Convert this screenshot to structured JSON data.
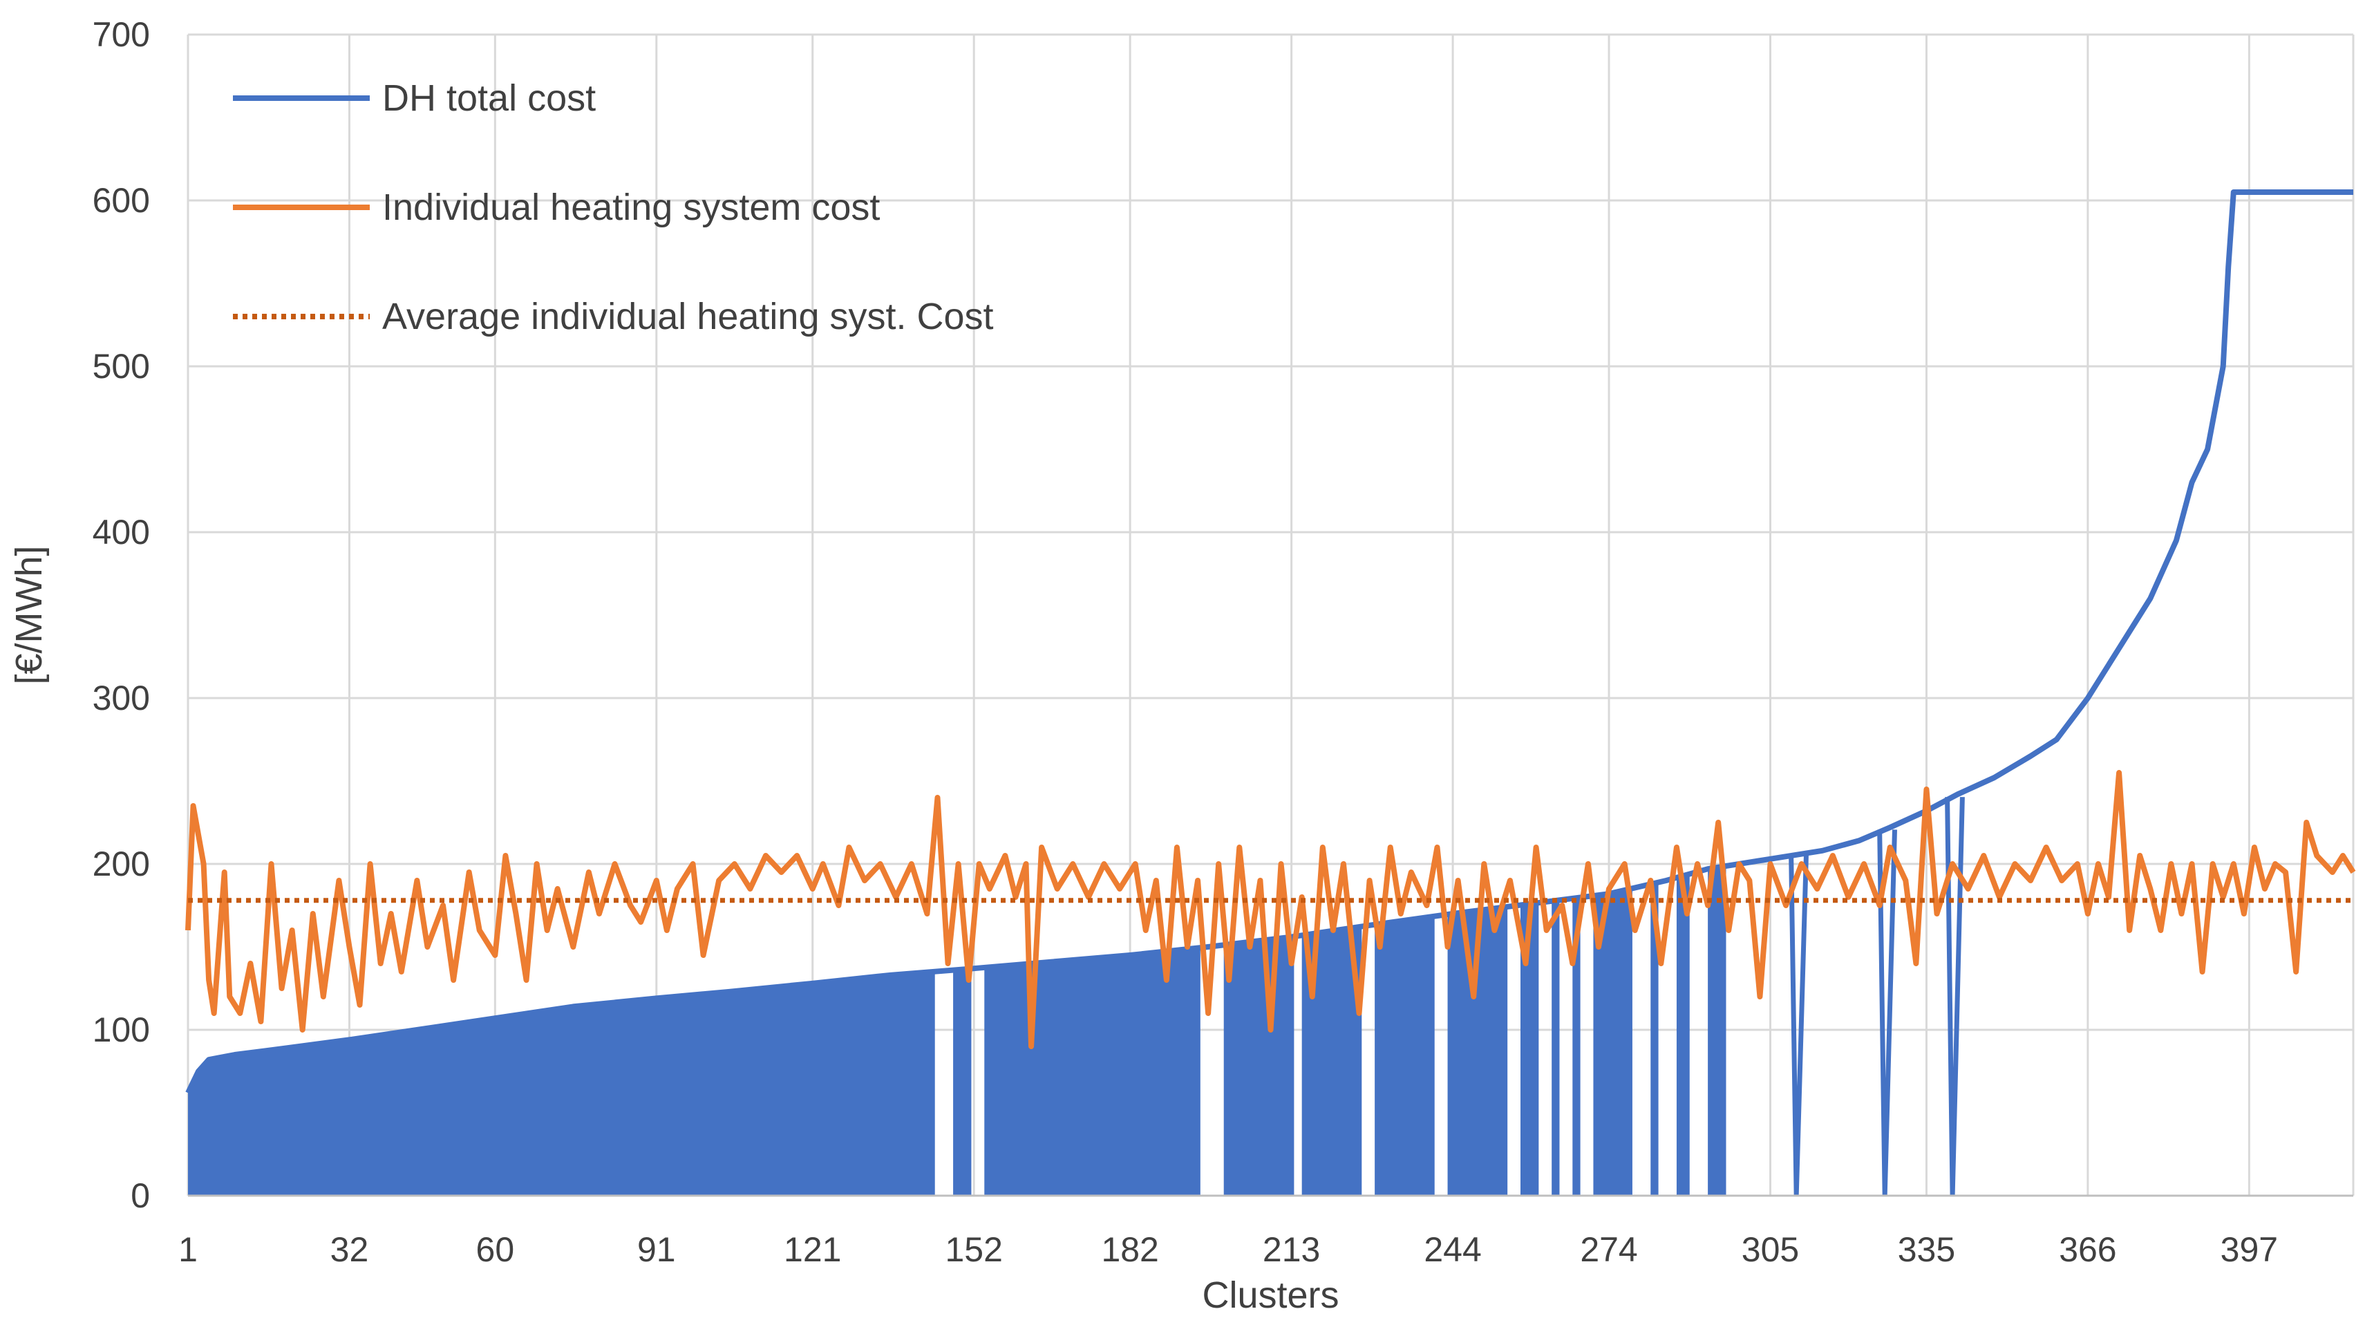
{
  "chart_data": {
    "type": "line",
    "title": "",
    "xlabel": "Clusters",
    "ylabel": "[€/MWh]",
    "ylim": [
      0,
      700
    ],
    "xlim": [
      1,
      417
    ],
    "yticks": [
      0,
      100,
      200,
      300,
      400,
      500,
      600,
      700
    ],
    "xticks": [
      1,
      32,
      60,
      91,
      121,
      152,
      182,
      213,
      244,
      274,
      305,
      335,
      366,
      397
    ],
    "grid": true,
    "legend_position": "top-left",
    "series": [
      {
        "name": "DH total cost",
        "style": "line-with-area",
        "color": "#4472C4",
        "points": [
          [
            1,
            62
          ],
          [
            3,
            75
          ],
          [
            5,
            82
          ],
          [
            10,
            85
          ],
          [
            20,
            89
          ],
          [
            32,
            94
          ],
          [
            45,
            100
          ],
          [
            60,
            107
          ],
          [
            75,
            114
          ],
          [
            91,
            119
          ],
          [
            105,
            123
          ],
          [
            121,
            128
          ],
          [
            136,
            133
          ],
          [
            152,
            137
          ],
          [
            167,
            141
          ],
          [
            182,
            145
          ],
          [
            197,
            150
          ],
          [
            213,
            156
          ],
          [
            228,
            163
          ],
          [
            244,
            170
          ],
          [
            259,
            176
          ],
          [
            274,
            182
          ],
          [
            285,
            190
          ],
          [
            293,
            197
          ],
          [
            305,
            203
          ],
          [
            315,
            208
          ],
          [
            322,
            214
          ],
          [
            328,
            222
          ],
          [
            335,
            232
          ],
          [
            341,
            242
          ],
          [
            348,
            252
          ],
          [
            355,
            265
          ],
          [
            360,
            275
          ],
          [
            366,
            300
          ],
          [
            372,
            330
          ],
          [
            378,
            360
          ],
          [
            383,
            395
          ],
          [
            386,
            430
          ],
          [
            389,
            450
          ],
          [
            392,
            500
          ],
          [
            393,
            560
          ],
          [
            394,
            605
          ],
          [
            417,
            605
          ]
        ],
        "area_until": 300,
        "dropouts": [
          [
            145,
            147
          ],
          [
            152,
            153
          ],
          [
            196,
            197
          ],
          [
            198,
            199
          ],
          [
            214,
            214
          ],
          [
            227,
            228
          ],
          [
            241,
            242
          ],
          [
            255,
            256
          ],
          [
            261,
            262
          ],
          [
            265,
            266
          ],
          [
            269,
            270
          ],
          [
            279,
            281
          ],
          [
            284,
            286
          ],
          [
            290,
            292
          ],
          [
            297,
            300
          ],
          [
            309,
            311
          ],
          [
            326,
            328
          ],
          [
            339,
            341
          ]
        ]
      },
      {
        "name": "Individual heating system cost",
        "style": "line",
        "color": "#ED7D31",
        "points": [
          [
            1,
            160
          ],
          [
            2,
            235
          ],
          [
            4,
            200
          ],
          [
            5,
            130
          ],
          [
            6,
            110
          ],
          [
            8,
            195
          ],
          [
            9,
            120
          ],
          [
            11,
            110
          ],
          [
            13,
            140
          ],
          [
            15,
            105
          ],
          [
            17,
            200
          ],
          [
            19,
            125
          ],
          [
            21,
            160
          ],
          [
            23,
            100
          ],
          [
            25,
            170
          ],
          [
            27,
            120
          ],
          [
            30,
            190
          ],
          [
            32,
            150
          ],
          [
            34,
            115
          ],
          [
            36,
            200
          ],
          [
            38,
            140
          ],
          [
            40,
            170
          ],
          [
            42,
            135
          ],
          [
            45,
            190
          ],
          [
            47,
            150
          ],
          [
            50,
            175
          ],
          [
            52,
            130
          ],
          [
            55,
            195
          ],
          [
            57,
            160
          ],
          [
            60,
            145
          ],
          [
            62,
            205
          ],
          [
            64,
            170
          ],
          [
            66,
            130
          ],
          [
            68,
            200
          ],
          [
            70,
            160
          ],
          [
            72,
            185
          ],
          [
            75,
            150
          ],
          [
            78,
            195
          ],
          [
            80,
            170
          ],
          [
            83,
            200
          ],
          [
            86,
            175
          ],
          [
            88,
            165
          ],
          [
            91,
            190
          ],
          [
            93,
            160
          ],
          [
            95,
            185
          ],
          [
            98,
            200
          ],
          [
            100,
            145
          ],
          [
            103,
            190
          ],
          [
            106,
            200
          ],
          [
            109,
            185
          ],
          [
            112,
            205
          ],
          [
            115,
            195
          ],
          [
            118,
            205
          ],
          [
            121,
            185
          ],
          [
            123,
            200
          ],
          [
            126,
            175
          ],
          [
            128,
            210
          ],
          [
            131,
            190
          ],
          [
            134,
            200
          ],
          [
            137,
            180
          ],
          [
            140,
            200
          ],
          [
            143,
            170
          ],
          [
            145,
            240
          ],
          [
            147,
            140
          ],
          [
            149,
            200
          ],
          [
            151,
            130
          ],
          [
            153,
            200
          ],
          [
            155,
            185
          ],
          [
            158,
            205
          ],
          [
            160,
            180
          ],
          [
            162,
            200
          ],
          [
            163,
            90
          ],
          [
            165,
            210
          ],
          [
            168,
            185
          ],
          [
            171,
            200
          ],
          [
            174,
            180
          ],
          [
            177,
            200
          ],
          [
            180,
            185
          ],
          [
            183,
            200
          ],
          [
            185,
            160
          ],
          [
            187,
            190
          ],
          [
            189,
            130
          ],
          [
            191,
            210
          ],
          [
            193,
            150
          ],
          [
            195,
            190
          ],
          [
            197,
            110
          ],
          [
            199,
            200
          ],
          [
            201,
            130
          ],
          [
            203,
            210
          ],
          [
            205,
            150
          ],
          [
            207,
            190
          ],
          [
            209,
            100
          ],
          [
            211,
            200
          ],
          [
            213,
            140
          ],
          [
            215,
            180
          ],
          [
            217,
            120
          ],
          [
            219,
            210
          ],
          [
            221,
            160
          ],
          [
            223,
            200
          ],
          [
            226,
            110
          ],
          [
            228,
            190
          ],
          [
            230,
            150
          ],
          [
            232,
            210
          ],
          [
            234,
            170
          ],
          [
            236,
            195
          ],
          [
            239,
            175
          ],
          [
            241,
            210
          ],
          [
            243,
            150
          ],
          [
            245,
            190
          ],
          [
            248,
            120
          ],
          [
            250,
            200
          ],
          [
            252,
            160
          ],
          [
            255,
            190
          ],
          [
            258,
            140
          ],
          [
            260,
            210
          ],
          [
            262,
            160
          ],
          [
            265,
            175
          ],
          [
            267,
            140
          ],
          [
            270,
            200
          ],
          [
            272,
            150
          ],
          [
            274,
            185
          ],
          [
            277,
            200
          ],
          [
            279,
            160
          ],
          [
            282,
            190
          ],
          [
            284,
            140
          ],
          [
            287,
            210
          ],
          [
            289,
            170
          ],
          [
            291,
            200
          ],
          [
            293,
            175
          ],
          [
            295,
            225
          ],
          [
            297,
            160
          ],
          [
            299,
            200
          ],
          [
            301,
            190
          ],
          [
            303,
            120
          ],
          [
            305,
            200
          ],
          [
            308,
            175
          ],
          [
            311,
            200
          ],
          [
            314,
            185
          ],
          [
            317,
            205
          ],
          [
            320,
            180
          ],
          [
            323,
            200
          ],
          [
            326,
            175
          ],
          [
            328,
            210
          ],
          [
            331,
            190
          ],
          [
            333,
            140
          ],
          [
            335,
            245
          ],
          [
            337,
            170
          ],
          [
            340,
            200
          ],
          [
            343,
            185
          ],
          [
            346,
            205
          ],
          [
            349,
            180
          ],
          [
            352,
            200
          ],
          [
            355,
            190
          ],
          [
            358,
            210
          ],
          [
            361,
            190
          ],
          [
            364,
            200
          ],
          [
            366,
            170
          ],
          [
            368,
            200
          ],
          [
            370,
            180
          ],
          [
            372,
            255
          ],
          [
            374,
            160
          ],
          [
            376,
            205
          ],
          [
            378,
            185
          ],
          [
            380,
            160
          ],
          [
            382,
            200
          ],
          [
            384,
            170
          ],
          [
            386,
            200
          ],
          [
            388,
            135
          ],
          [
            390,
            200
          ],
          [
            392,
            180
          ],
          [
            394,
            200
          ],
          [
            396,
            170
          ],
          [
            398,
            210
          ],
          [
            400,
            185
          ],
          [
            402,
            200
          ],
          [
            404,
            195
          ],
          [
            406,
            135
          ],
          [
            408,
            225
          ],
          [
            410,
            205
          ],
          [
            413,
            195
          ],
          [
            415,
            205
          ],
          [
            417,
            195
          ]
        ]
      },
      {
        "name": "Average individual heating syst. Cost",
        "style": "dotted",
        "color": "#C55A11",
        "value": 178
      }
    ]
  }
}
